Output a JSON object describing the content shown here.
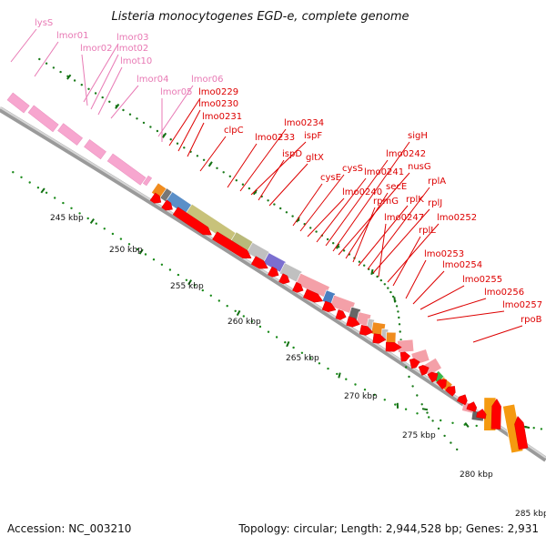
{
  "title": "Listeria monocytogenes EGD-e, complete genome",
  "footer": {
    "accession": "Accession: NC_003210",
    "topology": "Topology: circular; Length: 2,944,528 bp; Genes: 2,931"
  },
  "colors": {
    "background": "#ffffff",
    "backbone": "#9e9e9e",
    "rna_gene": "#f7a6cf",
    "rna_label": "#e879b4",
    "cds": "#ff0000",
    "cds_label": "#dd0000",
    "tick_dot": "#0f7a0f"
  },
  "scale": {
    "unit": "kbp",
    "ticks": [
      {
        "value": 245,
        "label": "245 kbp"
      },
      {
        "value": 250,
        "label": "250 kbp"
      },
      {
        "value": 255,
        "label": "255 kbp"
      },
      {
        "value": 260,
        "label": "260 kbp"
      },
      {
        "value": 265,
        "label": "265 kbp"
      },
      {
        "value": 270,
        "label": "270 kbp"
      },
      {
        "value": 275,
        "label": "275 kbp"
      },
      {
        "value": 280,
        "label": "280 kbp"
      },
      {
        "value": 285,
        "label": "285 kbp"
      }
    ]
  },
  "gene_labels": [
    {
      "text": "lysS",
      "kind": "rna"
    },
    {
      "text": "lmor01",
      "kind": "rna"
    },
    {
      "text": "lmor03",
      "kind": "rna"
    },
    {
      "text": "lmor02",
      "kind": "rna"
    },
    {
      "text": "lmot02",
      "kind": "rna"
    },
    {
      "text": "lmot10",
      "kind": "rna"
    },
    {
      "text": "lmor04",
      "kind": "rna"
    },
    {
      "text": "lmor06",
      "kind": "rna"
    },
    {
      "text": "lmor05",
      "kind": "rna"
    },
    {
      "text": "lmo0229",
      "kind": "cds"
    },
    {
      "text": "lmo0230",
      "kind": "cds"
    },
    {
      "text": "lmo0231",
      "kind": "cds"
    },
    {
      "text": "clpC",
      "kind": "cds"
    },
    {
      "text": "lmo0233",
      "kind": "cds"
    },
    {
      "text": "lmo0234",
      "kind": "cds"
    },
    {
      "text": "ispF",
      "kind": "cds"
    },
    {
      "text": "ispD",
      "kind": "cds"
    },
    {
      "text": "gltX",
      "kind": "cds"
    },
    {
      "text": "cysE",
      "kind": "cds"
    },
    {
      "text": "cysS",
      "kind": "cds"
    },
    {
      "text": "lmo0240",
      "kind": "cds"
    },
    {
      "text": "lmo0241",
      "kind": "cds"
    },
    {
      "text": "lmo0242",
      "kind": "cds"
    },
    {
      "text": "sigH",
      "kind": "cds"
    },
    {
      "text": "nusG",
      "kind": "cds"
    },
    {
      "text": "secE",
      "kind": "cds"
    },
    {
      "text": "rpmG",
      "kind": "cds"
    },
    {
      "text": "rplK",
      "kind": "cds"
    },
    {
      "text": "rplA",
      "kind": "cds"
    },
    {
      "text": "rplJ",
      "kind": "cds"
    },
    {
      "text": "lmo0247",
      "kind": "cds"
    },
    {
      "text": "lmo0252",
      "kind": "cds"
    },
    {
      "text": "rplL",
      "kind": "cds"
    },
    {
      "text": "lmo0253",
      "kind": "cds"
    },
    {
      "text": "lmo0254",
      "kind": "cds"
    },
    {
      "text": "lmo0255",
      "kind": "cds"
    },
    {
      "text": "lmo0256",
      "kind": "cds"
    },
    {
      "text": "lmo0257",
      "kind": "cds"
    },
    {
      "text": "rpoB",
      "kind": "cds"
    }
  ]
}
